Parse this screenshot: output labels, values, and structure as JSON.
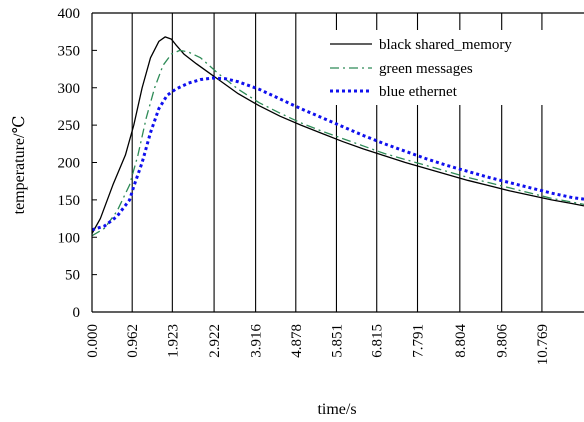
{
  "chart_data": {
    "type": "line",
    "title": "",
    "xlabel": "time/s",
    "ylabel": "temperature/℃",
    "xlim": [
      0,
      11.776
    ],
    "ylim": [
      0,
      400
    ],
    "x_tick_labels": [
      "0.000",
      "0.962",
      "1.923",
      "2.922",
      "3.916",
      "4.878",
      "5.851",
      "6.815",
      "7.791",
      "8.804",
      "9.806",
      "10.769"
    ],
    "x_ticks": [
      0.0,
      0.962,
      1.923,
      2.922,
      3.916,
      4.878,
      5.851,
      6.815,
      7.791,
      8.804,
      9.806,
      10.769
    ],
    "y_ticks": [
      0,
      50,
      100,
      150,
      200,
      250,
      300,
      350,
      400
    ],
    "y_tick_labels": [
      "0",
      "50",
      "100",
      "150",
      "200",
      "250",
      "300",
      "350",
      "400"
    ],
    "grid": "vertical lines at x ticks",
    "legend_position": "top-right",
    "series": [
      {
        "name": "black shared_memory",
        "color": "#000000",
        "style": "solid",
        "x": [
          0.0,
          0.2,
          0.5,
          0.8,
          1.0,
          1.2,
          1.4,
          1.6,
          1.75,
          1.9,
          2.0,
          2.2,
          2.5,
          2.8,
          3.0,
          3.5,
          4.0,
          4.5,
          5.0,
          5.5,
          6.0,
          6.5,
          7.0,
          7.5,
          8.0,
          8.5,
          9.0,
          9.5,
          10.0,
          10.5,
          11.0,
          11.5,
          11.776
        ],
        "y": [
          105,
          125,
          170,
          210,
          250,
          300,
          340,
          362,
          368,
          365,
          358,
          345,
          332,
          320,
          312,
          292,
          276,
          262,
          250,
          239,
          228,
          218,
          209,
          200,
          192,
          184,
          176,
          169,
          162,
          156,
          150,
          145,
          142
        ]
      },
      {
        "name": "green messages",
        "color": "#2e8b57",
        "style": "dashdot",
        "x": [
          0.0,
          0.3,
          0.6,
          0.9,
          1.1,
          1.3,
          1.5,
          1.7,
          1.9,
          2.1,
          2.3,
          2.6,
          3.0,
          3.5,
          4.0,
          4.5,
          5.0,
          5.5,
          6.0,
          6.5,
          7.0,
          7.5,
          8.0,
          8.5,
          9.0,
          9.5,
          10.0,
          10.5,
          11.0,
          11.5,
          11.776
        ],
        "y": [
          102,
          112,
          135,
          170,
          210,
          260,
          300,
          330,
          345,
          350,
          348,
          340,
          320,
          298,
          280,
          266,
          253,
          242,
          232,
          222,
          212,
          204,
          196,
          188,
          180,
          173,
          166,
          159,
          152,
          147,
          144
        ]
      },
      {
        "name": "blue ethernet",
        "color": "#1010ee",
        "style": "dotted",
        "x": [
          0.0,
          0.3,
          0.6,
          0.9,
          1.0,
          1.2,
          1.4,
          1.6,
          1.8,
          2.0,
          2.3,
          2.6,
          2.9,
          3.2,
          3.5,
          4.0,
          4.5,
          5.0,
          5.5,
          6.0,
          6.5,
          7.0,
          7.5,
          8.0,
          8.5,
          9.0,
          9.5,
          10.0,
          10.5,
          11.0,
          11.5,
          11.776
        ],
        "y": [
          110,
          115,
          128,
          150,
          168,
          200,
          240,
          272,
          290,
          298,
          306,
          311,
          313,
          312,
          308,
          298,
          285,
          272,
          260,
          248,
          236,
          225,
          215,
          205,
          196,
          188,
          180,
          173,
          166,
          159,
          153,
          151
        ]
      }
    ]
  }
}
